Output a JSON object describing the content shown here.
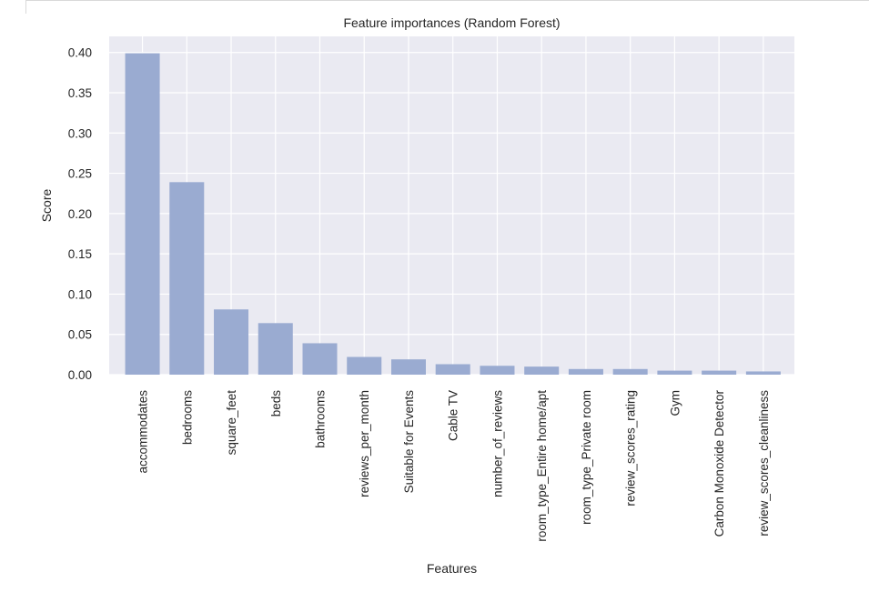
{
  "chart_data": {
    "type": "bar",
    "title": "Feature importances (Random Forest)",
    "xlabel": "Features",
    "ylabel": "Score",
    "categories": [
      "accommodates",
      "bedrooms",
      "square_feet",
      "beds",
      "bathrooms",
      "reviews_per_month",
      "Suitable for Events",
      "Cable TV",
      "number_of_reviews",
      "room_type_Entire home/apt",
      "room_type_Private room",
      "review_scores_rating",
      "Gym",
      "Carbon Monoxide Detector",
      "review_scores_cleanliness"
    ],
    "values": [
      0.399,
      0.239,
      0.081,
      0.064,
      0.039,
      0.022,
      0.019,
      0.013,
      0.011,
      0.01,
      0.007,
      0.007,
      0.005,
      0.005,
      0.004
    ],
    "yticks": [
      "0.00",
      "0.05",
      "0.10",
      "0.15",
      "0.20",
      "0.25",
      "0.30",
      "0.35",
      "0.40"
    ],
    "ylim": [
      0,
      0.42
    ],
    "grid": true,
    "colors": {
      "bar": "#9aabd1",
      "plot_background": "#eaeaf2",
      "grid": "#ffffff"
    }
  }
}
